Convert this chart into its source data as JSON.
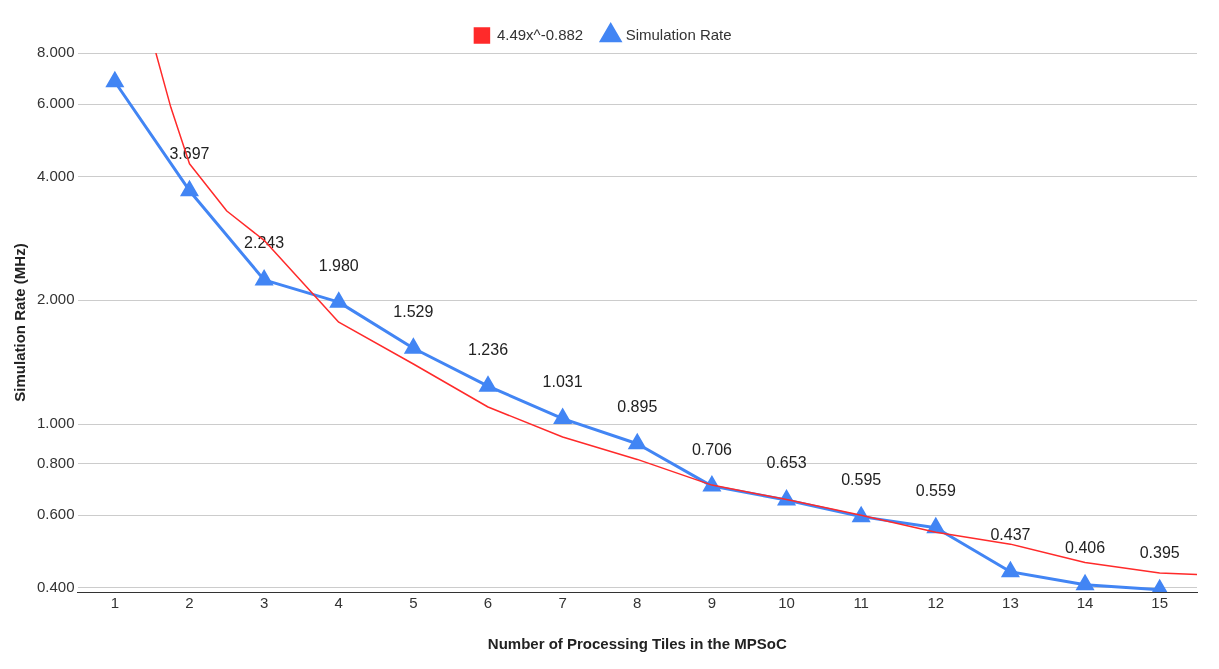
{
  "chart_data": {
    "type": "line",
    "xlabel": "Number of Processing Tiles in the MPSoC",
    "ylabel": "Simulation Rate (MHz)",
    "log": "y",
    "grid": "y",
    "legend": "top",
    "xlim": [
      0.5,
      15.5
    ],
    "xticks": [
      1,
      2,
      3,
      4,
      5,
      6,
      7,
      8,
      9,
      10,
      11,
      12,
      13,
      14,
      15
    ],
    "ylim": [
      0.39,
      8
    ],
    "yticks": [
      {
        "value": 0.4,
        "label": "0.400"
      },
      {
        "value": 0.6,
        "label": "0.600"
      },
      {
        "value": 0.8,
        "label": "0.800"
      },
      {
        "value": 1,
        "label": "1.000"
      },
      {
        "value": 2,
        "label": "2.000"
      },
      {
        "value": 4,
        "label": "4.000"
      },
      {
        "value": 6,
        "label": "6.000"
      },
      {
        "value": 8,
        "label": "8.000"
      }
    ],
    "series": [
      {
        "name": "Simulation Rate",
        "color": "#4285f4",
        "marker": "triangle",
        "x": [
          1,
          2,
          3,
          4,
          5,
          6,
          7,
          8,
          9,
          10,
          11,
          12,
          13,
          14,
          15
        ],
        "values": [
          6.81,
          3.697,
          2.243,
          1.98,
          1.529,
          1.236,
          1.031,
          0.895,
          0.706,
          0.653,
          0.595,
          0.559,
          0.437,
          0.406,
          0.395
        ],
        "value_labels": [
          null,
          "3.697",
          "2.243",
          "1.980",
          "1.529",
          "1.236",
          "1.031",
          "0.895",
          "0.706",
          "0.653",
          "0.595",
          "0.559",
          "0.437",
          "0.406",
          "0.395"
        ]
      },
      {
        "name": "4.49x^-0.882",
        "color": "#ff2a2a",
        "marker": "none",
        "x": [
          1.55,
          1.75,
          2,
          2.5,
          3,
          4,
          5,
          6,
          7,
          8,
          9,
          10,
          11,
          12,
          13,
          14,
          15,
          15.5
        ],
        "values": [
          8,
          5.9,
          4.3,
          3.3,
          2.8,
          1.77,
          1.4,
          1.1,
          0.93,
          0.82,
          0.71,
          0.655,
          0.6,
          0.545,
          0.51,
          0.46,
          0.434,
          0.43
        ]
      }
    ]
  }
}
